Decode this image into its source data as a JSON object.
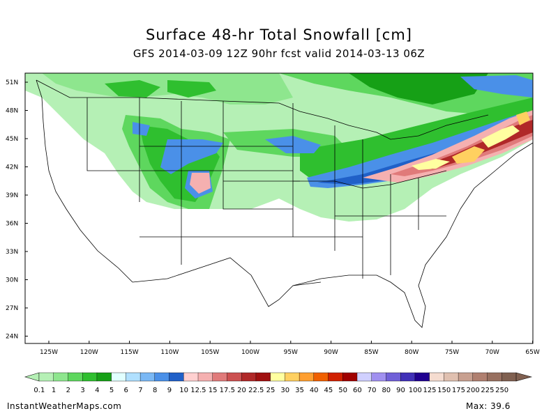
{
  "title": "Surface 48-hr Total Snowfall [cm]",
  "subtitle": "GFS 2014-03-09 12Z 90hr fcst valid 2014-03-13 06Z",
  "lat_labels": [
    "51N",
    "48N",
    "45N",
    "42N",
    "39N",
    "36N",
    "33N",
    "30N",
    "27N",
    "24N"
  ],
  "lon_labels": [
    "125W",
    "120W",
    "115W",
    "110W",
    "105W",
    "100W",
    "95W",
    "90W",
    "85W",
    "80W",
    "75W",
    "70W",
    "65W"
  ],
  "colorbar": {
    "labels": [
      "0.1",
      "1",
      "2",
      "3",
      "4",
      "5",
      "6",
      "7",
      "8",
      "9",
      "10",
      "12.5",
      "15",
      "17.5",
      "20",
      "22.5",
      "25",
      "30",
      "35",
      "40",
      "45",
      "50",
      "60",
      "70",
      "80",
      "90",
      "100",
      "125",
      "150",
      "175",
      "200",
      "225",
      "250"
    ],
    "colors": [
      "#b5f0b5",
      "#8ee68e",
      "#5ed75e",
      "#2fbf2f",
      "#16a016",
      "#e1ffff",
      "#b0e0ff",
      "#7ab8f5",
      "#4a90e8",
      "#2060c8",
      "#ffd0d0",
      "#f5b0b0",
      "#e07a7a",
      "#cc5050",
      "#b02828",
      "#a01010",
      "#ffffa0",
      "#ffd060",
      "#ff9f30",
      "#f06000",
      "#d02000",
      "#a00000",
      "#d0d0ff",
      "#a090f0",
      "#7060d8",
      "#4030b8",
      "#200090",
      "#f5dcd0",
      "#e0c0b0",
      "#c8a090",
      "#b08070",
      "#987060",
      "#806050"
    ]
  },
  "footer_left": "InstantWeatherMaps.com",
  "footer_right": "Max:  39.6"
}
